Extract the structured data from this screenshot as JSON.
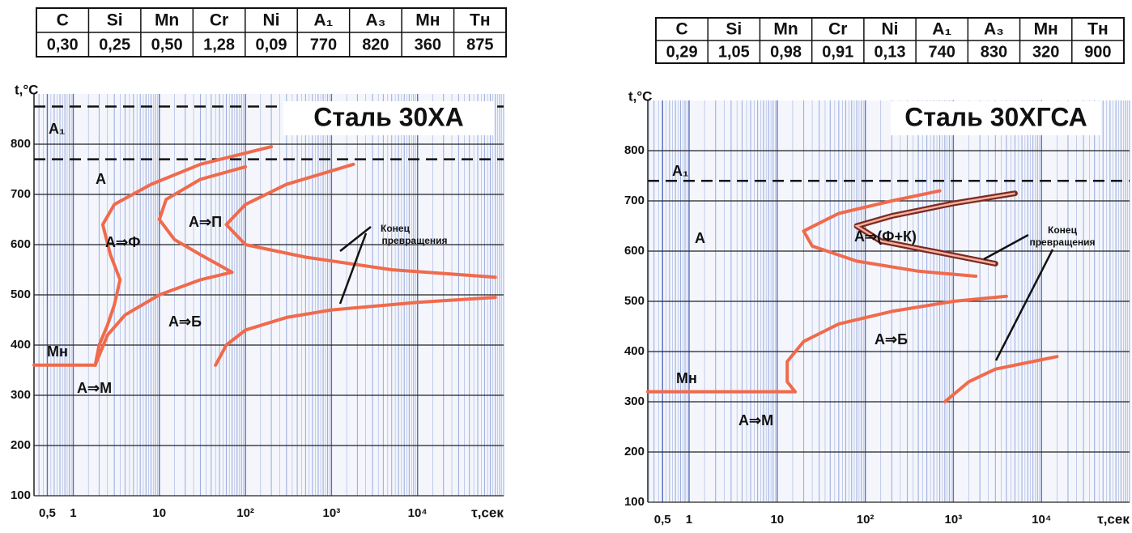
{
  "tables": [
    {
      "header": [
        "C",
        "Si",
        "Mn",
        "Cr",
        "Ni",
        "A₁",
        "A₃",
        "Mн",
        "Tн"
      ],
      "row": [
        "0,30",
        "0,25",
        "0,50",
        "1,28",
        "0,09",
        "770",
        "820",
        "360",
        "875"
      ]
    },
    {
      "header": [
        "C",
        "Si",
        "Mn",
        "Cr",
        "Ni",
        "A₁",
        "A₃",
        "Mн",
        "Tн"
      ],
      "row": [
        "0,29",
        "1,05",
        "0,98",
        "0,91",
        "0,13",
        "740",
        "830",
        "320",
        "900"
      ]
    }
  ],
  "chart_data": [
    {
      "type": "line",
      "title": "Сталь 30ХА",
      "y_label": "t,°C",
      "x_label": "τ,сек",
      "log_x": true,
      "grid": true,
      "xlim": [
        0.35,
        100000
      ],
      "ylim": [
        100,
        900
      ],
      "xticks": [
        {
          "value": 0.5,
          "label": "0,5"
        },
        1,
        10,
        {
          "value": 100,
          "label": "10²"
        },
        {
          "value": 1000,
          "label": "10³"
        },
        {
          "value": 10000,
          "label": "10⁴"
        }
      ],
      "yticks": [
        100,
        200,
        300,
        400,
        500,
        600,
        700,
        800
      ],
      "hlines": [
        770,
        875
      ],
      "annotations": [
        "A₁",
        "А",
        "А⇒Ф",
        "А⇒П",
        "А⇒Б",
        "А⇒М",
        "Mн",
        "Конец",
        "превращения"
      ],
      "series": [
        {
          "color": "#f06a4c",
          "x": [
            200,
            30,
            8,
            3,
            2.2,
            2.7,
            3.5,
            3,
            2.5,
            2,
            1.8
          ],
          "values": [
            795,
            760,
            720,
            680,
            640,
            580,
            530,
            480,
            440,
            400,
            360
          ]
        },
        {
          "color": "#f06a4c",
          "x": [
            0.35,
            1.8
          ],
          "values": [
            360,
            360
          ]
        },
        {
          "color": "#f06a4c",
          "x": [
            100,
            30,
            12,
            10,
            15,
            30,
            70,
            30,
            10,
            4,
            2.5,
            1.8
          ],
          "values": [
            755,
            730,
            690,
            650,
            610,
            580,
            545,
            530,
            500,
            460,
            420,
            360
          ]
        },
        {
          "color": "#f06a4c",
          "x": [
            1800,
            300,
            100,
            60,
            100,
            500,
            5000,
            80000
          ],
          "values": [
            760,
            720,
            680,
            640,
            600,
            575,
            550,
            535
          ]
        },
        {
          "color": "#f06a4c",
          "x": [
            45,
            60,
            100,
            300,
            1000,
            10000,
            80000
          ],
          "values": [
            360,
            400,
            430,
            455,
            470,
            485,
            495
          ]
        }
      ]
    },
    {
      "type": "line",
      "title": "Сталь 30ХГСА",
      "y_label": "t,°C",
      "x_label": "τ,сек",
      "log_x": true,
      "grid": true,
      "xlim": [
        0.34,
        100000
      ],
      "ylim": [
        100,
        900
      ],
      "xticks": [
        {
          "value": 0.5,
          "label": "0,5"
        },
        1,
        10,
        {
          "value": 100,
          "label": "10²"
        },
        {
          "value": 1000,
          "label": "10³"
        },
        {
          "value": 10000,
          "label": "10⁴"
        }
      ],
      "yticks": [
        100,
        200,
        300,
        400,
        500,
        600,
        700,
        800
      ],
      "hlines": [
        740
      ],
      "annotations": [
        "A₁",
        "А",
        "А⇒(Ф+К)",
        "А⇒Б",
        "А⇒М",
        "Mн",
        "Конец",
        "превращения"
      ],
      "series": [
        {
          "color": "#f06a4c",
          "x": [
            700,
            200,
            50,
            20,
            25,
            80,
            400,
            1800
          ],
          "values": [
            720,
            700,
            675,
            640,
            610,
            580,
            560,
            550
          ]
        },
        {
          "color": "#7a2a20",
          "style": "double",
          "x": [
            5000,
            1000,
            200,
            80,
            150,
            800,
            3000
          ],
          "values": [
            715,
            695,
            670,
            650,
            620,
            595,
            575
          ]
        },
        {
          "color": "#f06a4c",
          "x": [
            4000,
            1000,
            200,
            50,
            20,
            13,
            13,
            16
          ],
          "values": [
            510,
            500,
            480,
            455,
            420,
            380,
            340,
            320
          ]
        },
        {
          "color": "#f06a4c",
          "x": [
            0.34,
            16
          ],
          "values": [
            320,
            320
          ]
        },
        {
          "color": "#f06a4c",
          "x": [
            800,
            1500,
            3000,
            15000
          ],
          "values": [
            300,
            340,
            365,
            390
          ]
        }
      ]
    }
  ]
}
